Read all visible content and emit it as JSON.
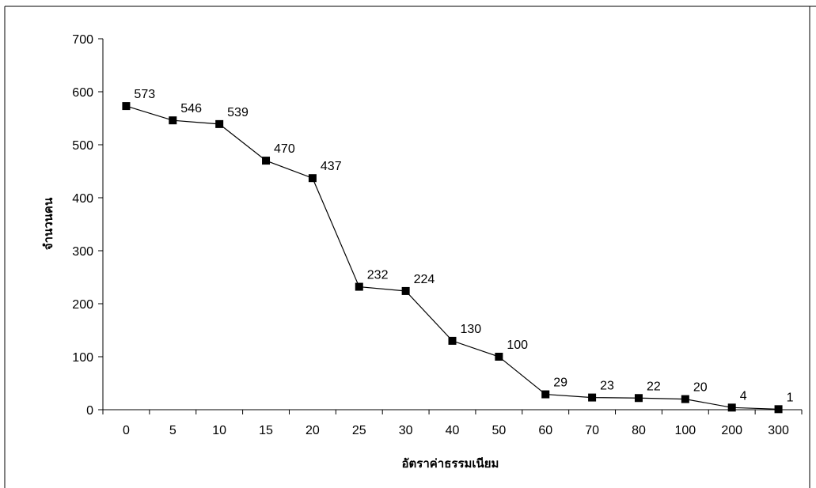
{
  "chart_data": {
    "type": "line",
    "title": "",
    "xlabel": "อัตราค่าธรรมเนียม",
    "ylabel": "จำนวนคน",
    "categories": [
      "0",
      "5",
      "10",
      "15",
      "20",
      "25",
      "30",
      "40",
      "50",
      "60",
      "70",
      "80",
      "100",
      "200",
      "300"
    ],
    "series": [
      {
        "values": [
          573,
          546,
          539,
          470,
          437,
          232,
          224,
          130,
          100,
          29,
          23,
          22,
          20,
          4,
          1
        ],
        "marker": "square",
        "color": "#000000"
      }
    ],
    "ylim": [
      0,
      700
    ],
    "yticks": [
      0,
      100,
      200,
      300,
      400,
      500,
      600,
      700
    ],
    "grid": false,
    "legend": "none"
  }
}
